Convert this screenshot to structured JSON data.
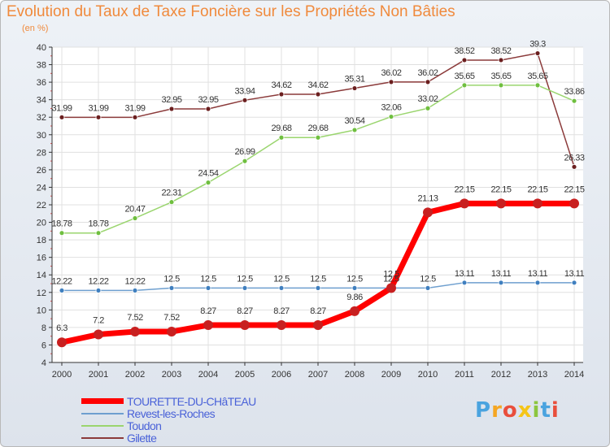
{
  "header": {
    "title": "Evolution du Taux de Taxe Foncière sur les Propriétés Non Bâties",
    "subtitle": "(en %)"
  },
  "logo": {
    "text": "Proxiti",
    "letter_colors": [
      "#4aa3df",
      "#f5a623",
      "#e94e3c",
      "#f5c518",
      "#8cc63f",
      "#4aa3df",
      "#e94e3c"
    ]
  },
  "chart_data": {
    "type": "line",
    "title": "Evolution du Taux de Taxe Foncière sur les Propriétés Non Bâties",
    "ylabel": "(en %)",
    "x": [
      "2000",
      "2001",
      "2002",
      "2003",
      "2004",
      "2005",
      "2006",
      "2007",
      "2008",
      "2009",
      "2010",
      "2011",
      "2012",
      "2013",
      "2014"
    ],
    "ylim": [
      4,
      40
    ],
    "yticks": [
      4,
      6,
      8,
      10,
      12,
      14,
      16,
      18,
      20,
      22,
      24,
      26,
      28,
      30,
      32,
      34,
      36,
      38,
      40
    ],
    "grid": true,
    "legend_position": "bottom-left",
    "series": [
      {
        "name": "TOURETTE-DU-CHâTEAU",
        "color": "#ff0000",
        "marker": "#c82020",
        "width": 7,
        "dot": 6,
        "values": [
          6.3,
          7.2,
          7.52,
          7.52,
          8.27,
          8.27,
          8.27,
          8.27,
          9.86,
          12.5,
          21.13,
          22.15,
          22.15,
          22.15,
          22.15
        ],
        "labels": [
          "6.3",
          "7.2",
          "7.52",
          "7.52",
          "8.27",
          "8.27",
          "8.27",
          "8.27",
          "9.86",
          "12.5",
          "21.13",
          "22.15",
          "22.15",
          "22.15",
          "22.15"
        ]
      },
      {
        "name": "Revest-les-Roches",
        "color": "#6e9fcf",
        "marker": "#3f7fbf",
        "width": 1.5,
        "dot": 3,
        "values": [
          12.22,
          12.22,
          12.22,
          12.5,
          12.5,
          12.5,
          12.5,
          12.5,
          12.5,
          12.5,
          12.5,
          13.11,
          13.11,
          13.11,
          13.11
        ],
        "labels": [
          "12.22",
          "12.22",
          "12.22",
          "12.5",
          "12.5",
          "12.5",
          "12.5",
          "12.5",
          "12.5",
          "12.5",
          "12.5",
          "13.11",
          "13.11",
          "13.11",
          "13.11"
        ]
      },
      {
        "name": "Toudon",
        "color": "#9ad56e",
        "marker": "#6fbf3f",
        "width": 1.5,
        "dot": 3,
        "values": [
          18.78,
          18.78,
          20.47,
          22.31,
          24.54,
          26.99,
          29.68,
          29.68,
          30.54,
          32.06,
          33.02,
          35.65,
          35.65,
          35.65,
          33.86
        ],
        "labels": [
          "18.78",
          "18.78",
          "20.47",
          "22.31",
          "24.54",
          "26.99",
          "29.68",
          "29.68",
          "30.54",
          "32.06",
          "33.02",
          "35.65",
          "35.65",
          "35.65",
          "33.86"
        ]
      },
      {
        "name": "Gilette",
        "color": "#8b3a3a",
        "marker": "#6b1f1f",
        "width": 1.5,
        "dot": 3,
        "values": [
          31.99,
          31.99,
          31.99,
          32.95,
          32.95,
          33.94,
          34.62,
          34.62,
          35.31,
          36.02,
          36.02,
          38.52,
          38.52,
          39.3,
          26.33
        ],
        "labels": [
          "31.99",
          "31.99",
          "31.99",
          "32.95",
          "32.95",
          "33.94",
          "34.62",
          "34.62",
          "35.31",
          "36.02",
          "36.02",
          "38.52",
          "38.52",
          "39.3",
          "26.33"
        ]
      }
    ]
  }
}
